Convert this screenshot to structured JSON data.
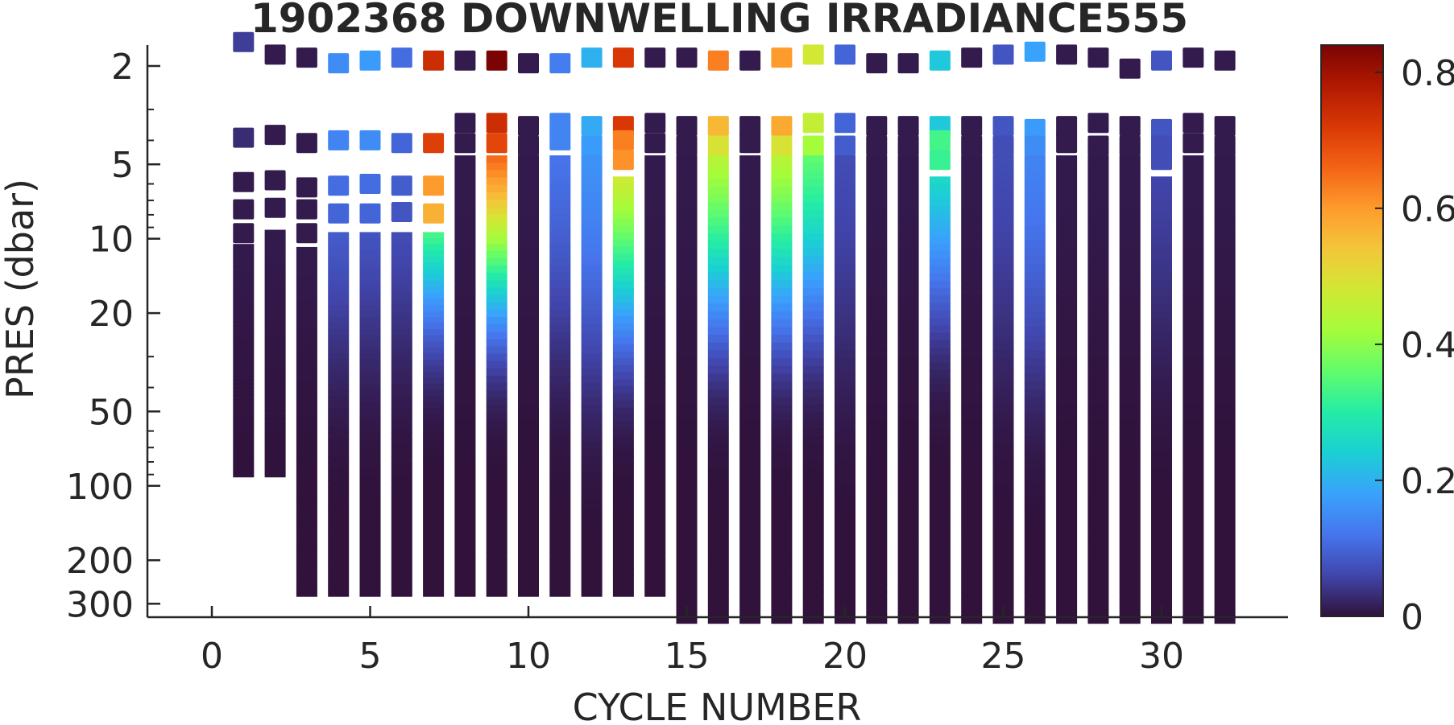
{
  "chart_data": {
    "type": "heatmap",
    "title": "1902368  DOWNWELLING IRRADIANCE555",
    "xlabel": "CYCLE NUMBER",
    "ylabel": "PRES (dbar)",
    "xlim": [
      -2,
      34
    ],
    "ylim": [
      1.55,
      340
    ],
    "y_scale": "log",
    "y_direction": "reversed",
    "xticks": [
      0,
      5,
      10,
      15,
      20,
      25,
      30
    ],
    "yticks": [
      2,
      5,
      10,
      20,
      50,
      100,
      200,
      300
    ],
    "colorbar": {
      "range": [
        0,
        0.84
      ],
      "ticks": [
        0,
        0.2,
        0.4,
        0.6,
        0.8
      ],
      "colormap": "turbo",
      "colors": [
        "#30123b",
        "#4145ab",
        "#4675ed",
        "#39a2fc",
        "#1bcfd4",
        "#24eca6",
        "#61fc6c",
        "#a4fc3b",
        "#d1e834",
        "#f3c63a",
        "#fe9b2d",
        "#f36315",
        "#d93806",
        "#b11901",
        "#7a0403"
      ]
    },
    "grid": false,
    "legend": "none",
    "cycles": [
      {
        "cycle": 1,
        "points": [
          [
            1.6,
            0.05
          ],
          [
            3.9,
            0.03
          ],
          [
            5.9,
            0.01
          ],
          [
            7.6,
            0.01
          ],
          [
            9.5,
            0.01
          ]
        ],
        "profile": {
          "top": 10.5,
          "bottom": 92,
          "surface": 0.01,
          "efold": 25
        }
      },
      {
        "cycle": 2,
        "points": [
          [
            1.8,
            0.01
          ],
          [
            3.8,
            0.01
          ],
          [
            5.8,
            0.01
          ],
          [
            7.5,
            0.01
          ]
        ],
        "profile": {
          "top": 9.2,
          "bottom": 92,
          "surface": 0.01,
          "efold": 25
        }
      },
      {
        "cycle": 3,
        "points": [
          [
            1.85,
            0.01
          ],
          [
            4.1,
            0.01
          ],
          [
            6.2,
            0.01
          ],
          [
            7.6,
            0.01
          ],
          [
            9.5,
            0.01
          ]
        ],
        "profile": {
          "top": 10.8,
          "bottom": 280,
          "surface": 0.01,
          "efold": 25
        }
      },
      {
        "cycle": 4,
        "points": [
          [
            1.95,
            0.15
          ],
          [
            4.0,
            0.14
          ],
          [
            6.1,
            0.11
          ],
          [
            7.9,
            0.1
          ]
        ],
        "profile": {
          "top": 9.4,
          "bottom": 280,
          "surface": 0.09,
          "efold": 20
        }
      },
      {
        "cycle": 5,
        "points": [
          [
            1.9,
            0.17
          ],
          [
            4.0,
            0.15
          ],
          [
            6.0,
            0.11
          ],
          [
            7.9,
            0.1
          ]
        ],
        "profile": {
          "top": 9.4,
          "bottom": 280,
          "surface": 0.08,
          "efold": 20
        }
      },
      {
        "cycle": 6,
        "points": [
          [
            1.85,
            0.11
          ],
          [
            4.1,
            0.1
          ],
          [
            6.1,
            0.09
          ],
          [
            7.8,
            0.08
          ]
        ],
        "profile": {
          "top": 9.4,
          "bottom": 280,
          "surface": 0.07,
          "efold": 20
        }
      },
      {
        "cycle": 7,
        "points": [
          [
            1.9,
            0.74
          ],
          [
            4.1,
            0.71
          ],
          [
            6.1,
            0.6
          ],
          [
            7.9,
            0.57
          ]
        ],
        "profile": {
          "top": 9.4,
          "bottom": 280,
          "surface": 0.34,
          "efold": 12
        }
      },
      {
        "cycle": 8,
        "points": [
          [
            1.9,
            0.01
          ],
          [
            3.4,
            0.01
          ],
          [
            4.1,
            0.01
          ]
        ],
        "profile": {
          "top": 4.6,
          "bottom": 280,
          "surface": 0.01,
          "efold": 25
        }
      },
      {
        "cycle": 9,
        "points": [
          [
            1.9,
            0.84
          ],
          [
            3.4,
            0.74
          ],
          [
            4.1,
            0.7
          ]
        ],
        "profile": {
          "top": 4.6,
          "bottom": 280,
          "surface": 0.66,
          "efold": 12
        }
      },
      {
        "cycle": 10,
        "points": [
          [
            1.95,
            0.01
          ],
          [
            3.5,
            0.01
          ],
          [
            4.2,
            0.01
          ]
        ],
        "profile": {
          "top": 4.6,
          "bottom": 280,
          "surface": 0.01,
          "efold": 25
        }
      },
      {
        "cycle": 11,
        "points": [
          [
            1.95,
            0.13
          ],
          [
            3.4,
            0.14
          ],
          [
            4.0,
            0.14
          ]
        ],
        "profile": {
          "top": 4.6,
          "bottom": 280,
          "surface": 0.12,
          "efold": 20
        }
      },
      {
        "cycle": 12,
        "points": [
          [
            1.85,
            0.2
          ],
          [
            3.5,
            0.19
          ],
          [
            4.2,
            0.17
          ]
        ],
        "profile": {
          "top": 4.6,
          "bottom": 280,
          "surface": 0.16,
          "efold": 25
        }
      },
      {
        "cycle": 13,
        "points": [
          [
            1.85,
            0.72
          ],
          [
            3.5,
            0.72
          ],
          [
            4.0,
            0.63
          ],
          [
            4.8,
            0.61
          ]
        ],
        "profile": {
          "top": 5.6,
          "bottom": 280,
          "surface": 0.48,
          "efold": 15
        }
      },
      {
        "cycle": 14,
        "points": [
          [
            1.85,
            0.01
          ],
          [
            3.4,
            0.01
          ],
          [
            4.1,
            0.01
          ]
        ],
        "profile": {
          "top": 4.6,
          "bottom": 280,
          "surface": 0.01,
          "efold": 25
        }
      },
      {
        "cycle": 15,
        "points": [
          [
            1.85,
            0.01
          ],
          [
            3.5,
            0.01
          ],
          [
            4.2,
            0.01
          ]
        ],
        "profile": {
          "top": 4.6,
          "bottom": 360,
          "surface": 0.01,
          "efold": 25
        }
      },
      {
        "cycle": 16,
        "points": [
          [
            1.9,
            0.63
          ],
          [
            3.5,
            0.56
          ],
          [
            4.2,
            0.49
          ]
        ],
        "profile": {
          "top": 4.6,
          "bottom": 360,
          "surface": 0.45,
          "efold": 14
        }
      },
      {
        "cycle": 17,
        "points": [
          [
            1.9,
            0.01
          ],
          [
            3.5,
            0.01
          ],
          [
            4.1,
            0.01
          ]
        ],
        "profile": {
          "top": 4.6,
          "bottom": 360,
          "surface": 0.01,
          "efold": 25
        }
      },
      {
        "cycle": 18,
        "points": [
          [
            1.85,
            0.6
          ],
          [
            3.5,
            0.58
          ],
          [
            4.2,
            0.49
          ]
        ],
        "profile": {
          "top": 4.6,
          "bottom": 360,
          "surface": 0.45,
          "efold": 14
        }
      },
      {
        "cycle": 19,
        "points": [
          [
            1.8,
            0.48
          ],
          [
            3.4,
            0.46
          ],
          [
            4.2,
            0.42
          ]
        ],
        "profile": {
          "top": 4.6,
          "bottom": 360,
          "surface": 0.36,
          "efold": 14
        }
      },
      {
        "cycle": 20,
        "points": [
          [
            1.8,
            0.1
          ],
          [
            3.4,
            0.1
          ],
          [
            4.2,
            0.09
          ]
        ],
        "profile": {
          "top": 4.6,
          "bottom": 360,
          "surface": 0.07,
          "efold": 25
        }
      },
      {
        "cycle": 21,
        "points": [
          [
            1.95,
            0.01
          ],
          [
            3.5,
            0.01
          ],
          [
            4.2,
            0.01
          ]
        ],
        "profile": {
          "top": 4.6,
          "bottom": 360,
          "surface": 0.01,
          "efold": 25
        }
      },
      {
        "cycle": 22,
        "points": [
          [
            1.95,
            0.01
          ],
          [
            3.5,
            0.01
          ],
          [
            4.2,
            0.01
          ]
        ],
        "profile": {
          "top": 4.6,
          "bottom": 360,
          "surface": 0.01,
          "efold": 25
        }
      },
      {
        "cycle": 23,
        "points": [
          [
            1.9,
            0.23
          ],
          [
            3.5,
            0.23
          ],
          [
            4.0,
            0.33
          ],
          [
            4.8,
            0.32
          ]
        ],
        "profile": {
          "top": 5.6,
          "bottom": 360,
          "surface": 0.26,
          "efold": 12
        }
      },
      {
        "cycle": 24,
        "points": [
          [
            1.85,
            0.01
          ],
          [
            3.5,
            0.01
          ],
          [
            4.2,
            0.01
          ]
        ],
        "profile": {
          "top": 4.6,
          "bottom": 360,
          "surface": 0.01,
          "efold": 25
        }
      },
      {
        "cycle": 25,
        "points": [
          [
            1.8,
            0.08
          ],
          [
            3.5,
            0.08
          ],
          [
            4.2,
            0.07
          ]
        ],
        "profile": {
          "top": 4.6,
          "bottom": 360,
          "surface": 0.07,
          "efold": 25
        }
      },
      {
        "cycle": 26,
        "points": [
          [
            1.75,
            0.18
          ],
          [
            3.6,
            0.17
          ],
          [
            4.2,
            0.15
          ]
        ],
        "profile": {
          "top": 4.6,
          "bottom": 360,
          "surface": 0.14,
          "efold": 25
        }
      },
      {
        "cycle": 27,
        "points": [
          [
            1.8,
            0.01
          ],
          [
            3.5,
            0.01
          ],
          [
            4.1,
            0.01
          ]
        ],
        "profile": {
          "top": 4.6,
          "bottom": 360,
          "surface": 0.01,
          "efold": 25
        }
      },
      {
        "cycle": 28,
        "points": [
          [
            1.85,
            0.01
          ],
          [
            3.4,
            0.01
          ],
          [
            4.2,
            0.01
          ]
        ],
        "profile": {
          "top": 4.6,
          "bottom": 360,
          "surface": 0.01,
          "efold": 25
        }
      },
      {
        "cycle": 29,
        "points": [
          [
            2.05,
            0.01
          ],
          [
            3.5,
            0.01
          ],
          [
            4.2,
            0.01
          ]
        ],
        "profile": {
          "top": 4.6,
          "bottom": 360,
          "surface": 0.01,
          "efold": 25
        }
      },
      {
        "cycle": 30,
        "points": [
          [
            1.9,
            0.08
          ],
          [
            3.6,
            0.08
          ],
          [
            4.2,
            0.07
          ],
          [
            4.8,
            0.07
          ]
        ],
        "profile": {
          "top": 5.6,
          "bottom": 360,
          "surface": 0.06,
          "efold": 20
        }
      },
      {
        "cycle": 31,
        "points": [
          [
            1.85,
            0.01
          ],
          [
            3.4,
            0.01
          ],
          [
            4.1,
            0.01
          ]
        ],
        "profile": {
          "top": 4.6,
          "bottom": 360,
          "surface": 0.01,
          "efold": 25
        }
      },
      {
        "cycle": 32,
        "points": [
          [
            1.9,
            0.01
          ],
          [
            3.5,
            0.01
          ],
          [
            4.2,
            0.01
          ]
        ],
        "profile": {
          "top": 4.6,
          "bottom": 360,
          "surface": 0.01,
          "efold": 25
        }
      }
    ]
  }
}
